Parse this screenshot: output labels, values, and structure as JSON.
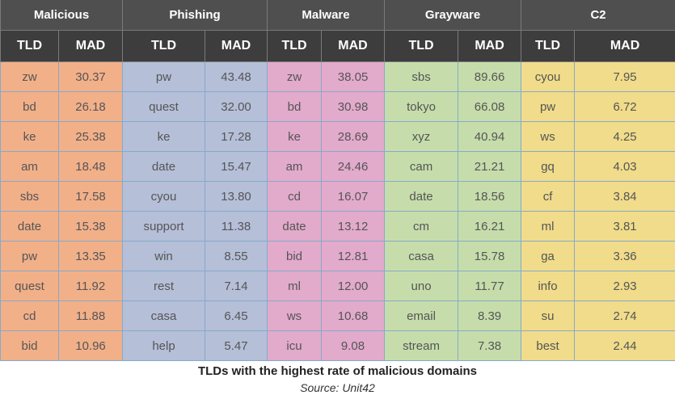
{
  "chart_data": {
    "type": "table",
    "title": "TLDs with the highest rate of malicious domains",
    "source": "Source: Unit42",
    "columns": [
      {
        "category": "Malicious",
        "tld_header": "TLD",
        "value_header": "MAD",
        "tlds": [
          "zw",
          "bd",
          "ke",
          "am",
          "sbs",
          "date",
          "pw",
          "quest",
          "cd",
          "bid"
        ],
        "values": [
          "30.37",
          "26.18",
          "25.38",
          "18.48",
          "17.58",
          "15.38",
          "13.35",
          "11.92",
          "11.88",
          "10.96"
        ]
      },
      {
        "category": "Phishing",
        "tld_header": "TLD",
        "value_header": "MAD",
        "tlds": [
          "pw",
          "quest",
          "ke",
          "date",
          "cyou",
          "support",
          "win",
          "rest",
          "casa",
          "help"
        ],
        "values": [
          "43.48",
          "32.00",
          "17.28",
          "15.47",
          "13.80",
          "11.38",
          "8.55",
          "7.14",
          "6.45",
          "5.47"
        ]
      },
      {
        "category": "Malware",
        "tld_header": "TLD",
        "value_header": "MAD",
        "tlds": [
          "zw",
          "bd",
          "ke",
          "am",
          "cd",
          "date",
          "bid",
          "ml",
          "ws",
          "icu"
        ],
        "values": [
          "38.05",
          "30.98",
          "28.69",
          "24.46",
          "16.07",
          "13.12",
          "12.81",
          "12.00",
          "10.68",
          "9.08"
        ]
      },
      {
        "category": "Grayware",
        "tld_header": "TLD",
        "value_header": "MAD",
        "tlds": [
          "sbs",
          "tokyo",
          "xyz",
          "cam",
          "date",
          "cm",
          "casa",
          "uno",
          "email",
          "stream"
        ],
        "values": [
          "89.66",
          "66.08",
          "40.94",
          "21.21",
          "18.56",
          "16.21",
          "15.78",
          "11.77",
          "8.39",
          "7.38"
        ]
      },
      {
        "category": "C2",
        "tld_header": "TLD",
        "value_header": "MAD",
        "tlds": [
          "cyou",
          "pw",
          "ws",
          "gq",
          "cf",
          "ml",
          "ga",
          "info",
          "su",
          "best"
        ],
        "values": [
          "7.95",
          "6.72",
          "4.25",
          "4.03",
          "3.84",
          "3.81",
          "3.36",
          "2.93",
          "2.74",
          "2.44"
        ]
      }
    ],
    "colors": {
      "header_top": "#4f4f4f",
      "header_sub": "#3d3d3d",
      "Malicious": "#f2b089",
      "Phishing": "#b5bfd8",
      "Malware": "#e2aacb",
      "Grayware": "#c6ddab",
      "C2": "#f0dc8a",
      "grid": "#86aac9"
    }
  }
}
